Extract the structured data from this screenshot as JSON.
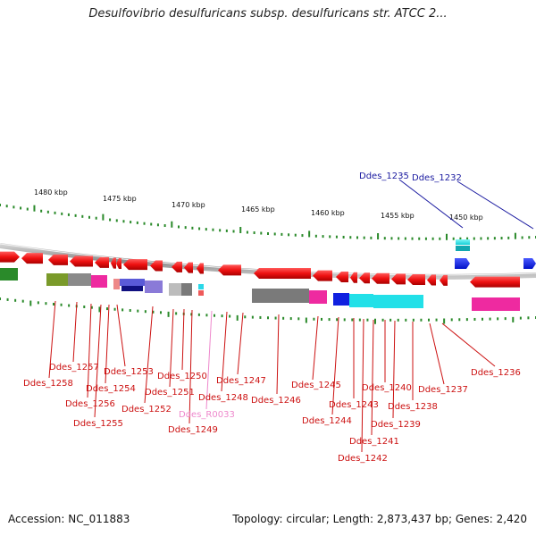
{
  "header": {
    "title": "Desulfovibrio desulfuricans subsp. desulfuricans str. ATCC 2..."
  },
  "footer": {
    "accession": "Accession: NC_011883",
    "summary": "Topology: circular; Length: 2,873,437 bp; Genes: 2,420"
  },
  "colors": {
    "forward_gene": "#ee1111",
    "reverse_gene": "#ee1111",
    "rna_gene": "#0a1ae8",
    "rna_label": "#1a1aa0",
    "gene_label": "#cc1111",
    "pseudo_label": "#ee88cc",
    "tick": "#2a8a2a",
    "backbone": "#9a9a9a"
  },
  "scale": {
    "unit": "kbp",
    "labels": [
      "1480 kbp",
      "1475 kbp",
      "1470 kbp",
      "1465 kbp",
      "1460 kbp",
      "1455 kbp",
      "1450 kbp"
    ]
  },
  "upper_labels": [
    "Ddes_1235",
    "Ddes_1232"
  ],
  "gene_labels": [
    "Ddes_1257",
    "Ddes_1258",
    "Ddes_1256",
    "Ddes_1255",
    "Ddes_1254",
    "Ddes_1253",
    "Ddes_1252",
    "Ddes_1251",
    "Ddes_1250",
    "Ddes_1249",
    "Ddes_R0033",
    "Ddes_1248",
    "Ddes_1247",
    "Ddes_1246",
    "Ddes_1245",
    "Ddes_1244",
    "Ddes_1243",
    "Ddes_1242",
    "Ddes_1241",
    "Ddes_1240",
    "Ddes_1239",
    "Ddes_1238",
    "Ddes_1237",
    "Ddes_1236"
  ]
}
